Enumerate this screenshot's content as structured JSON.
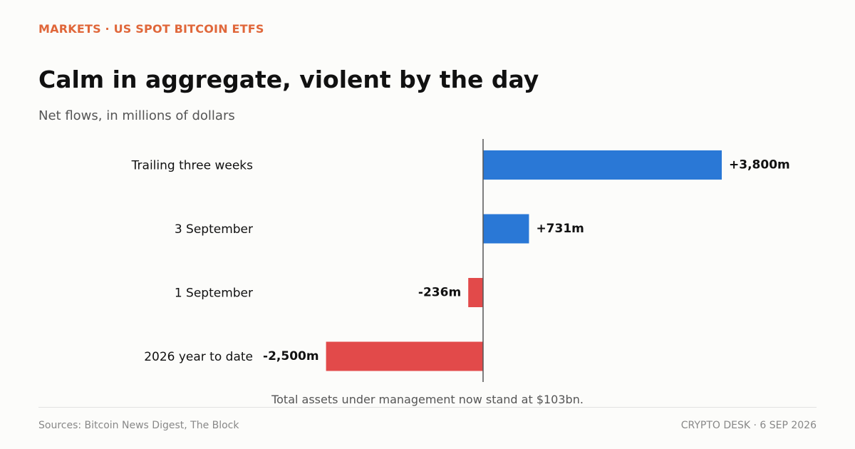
{
  "header": {
    "kicker": "MARKETS · US SPOT BITCOIN ETFS",
    "title": "Calm in aggregate, violent by the day",
    "subtitle": "Net flows, in millions of dollars"
  },
  "note": "Total assets under management now stand at $103bn.",
  "footer": {
    "source": "Sources: Bitcoin News Digest, The Block",
    "credit": "CRYPTO DESK  ·  6 SEP 2026"
  },
  "colors": {
    "positive": "#2a78d6",
    "negative": "#e24a4a",
    "axis": "#555555"
  },
  "chart_data": {
    "type": "bar",
    "orientation": "horizontal",
    "categories": [
      "Trailing three weeks",
      "3 September",
      "1 September",
      "2026 year to date"
    ],
    "values": [
      3800,
      731,
      -236,
      -2500
    ],
    "value_labels": [
      "+3,800m",
      "+731m",
      "-236m",
      "-2,500m"
    ],
    "unit": "millions of dollars",
    "grid": false,
    "legend": "none"
  }
}
